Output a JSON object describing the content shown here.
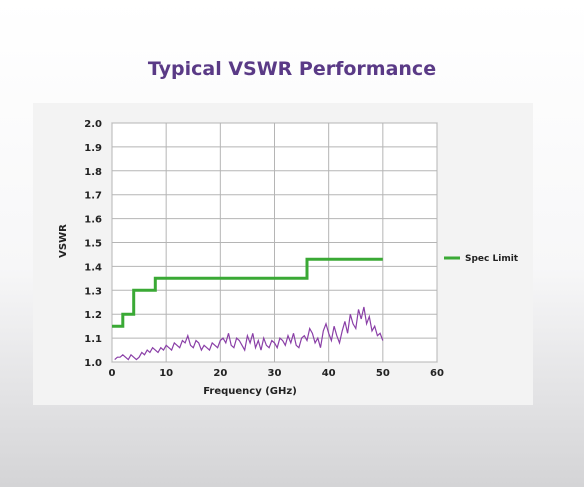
{
  "title": "Typical VSWR Performance",
  "chart_data": {
    "type": "line",
    "title": "Typical VSWR Performance",
    "xlabel": "Frequency (GHz)",
    "ylabel": "VSWR",
    "xlim": [
      0,
      60
    ],
    "ylim": [
      1.0,
      2.0
    ],
    "xticks": [
      "0",
      "10",
      "20",
      "30",
      "40",
      "50",
      "60"
    ],
    "yticks": [
      "1.0",
      "1.1",
      "1.2",
      "1.3",
      "1.4",
      "1.5",
      "1.6",
      "1.7",
      "1.8",
      "1.9",
      "2.0"
    ],
    "grid": true,
    "legend": "right",
    "series": [
      {
        "name": "Spec Limit",
        "color": "#3aa935",
        "step": true,
        "x": [
          0,
          2,
          2,
          4,
          4,
          8,
          8,
          36,
          36,
          50
        ],
        "y": [
          1.15,
          1.15,
          1.2,
          1.2,
          1.3,
          1.3,
          1.35,
          1.35,
          1.43,
          1.43
        ]
      },
      {
        "name": "",
        "color": "#8a3fa7",
        "x": [
          0.5,
          1,
          1.5,
          2,
          2.5,
          3,
          3.5,
          4,
          4.5,
          5,
          5.5,
          6,
          6.5,
          7,
          7.5,
          8,
          8.5,
          9,
          9.5,
          10,
          10.5,
          11,
          11.5,
          12,
          12.5,
          13,
          13.5,
          14,
          14.5,
          15,
          15.5,
          16,
          16.5,
          17,
          17.5,
          18,
          18.5,
          19,
          19.5,
          20,
          20.5,
          21,
          21.5,
          22,
          22.5,
          23,
          23.5,
          24,
          24.5,
          25,
          25.5,
          26,
          26.5,
          27,
          27.5,
          28,
          28.5,
          29,
          29.5,
          30,
          30.5,
          31,
          31.5,
          32,
          32.5,
          33,
          33.5,
          34,
          34.5,
          35,
          35.5,
          36,
          36.5,
          37,
          37.5,
          38,
          38.5,
          39,
          39.5,
          40,
          40.5,
          41,
          41.5,
          42,
          42.5,
          43,
          43.5,
          44,
          44.5,
          45,
          45.5,
          46,
          46.5,
          47,
          47.5,
          48,
          48.5,
          49,
          49.5,
          50
        ],
        "y": [
          1.01,
          1.02,
          1.02,
          1.03,
          1.02,
          1.01,
          1.03,
          1.02,
          1.01,
          1.02,
          1.04,
          1.03,
          1.05,
          1.04,
          1.06,
          1.05,
          1.04,
          1.06,
          1.05,
          1.07,
          1.06,
          1.05,
          1.08,
          1.07,
          1.06,
          1.09,
          1.08,
          1.11,
          1.07,
          1.06,
          1.09,
          1.08,
          1.05,
          1.07,
          1.06,
          1.05,
          1.08,
          1.07,
          1.06,
          1.09,
          1.1,
          1.08,
          1.12,
          1.07,
          1.06,
          1.1,
          1.09,
          1.07,
          1.05,
          1.11,
          1.08,
          1.12,
          1.06,
          1.09,
          1.05,
          1.1,
          1.07,
          1.06,
          1.09,
          1.08,
          1.06,
          1.1,
          1.09,
          1.07,
          1.11,
          1.08,
          1.12,
          1.07,
          1.06,
          1.1,
          1.11,
          1.09,
          1.14,
          1.12,
          1.08,
          1.1,
          1.06,
          1.13,
          1.16,
          1.12,
          1.09,
          1.15,
          1.11,
          1.08,
          1.13,
          1.17,
          1.12,
          1.2,
          1.16,
          1.14,
          1.22,
          1.18,
          1.23,
          1.16,
          1.19,
          1.13,
          1.15,
          1.11,
          1.12,
          1.09
        ]
      }
    ]
  }
}
